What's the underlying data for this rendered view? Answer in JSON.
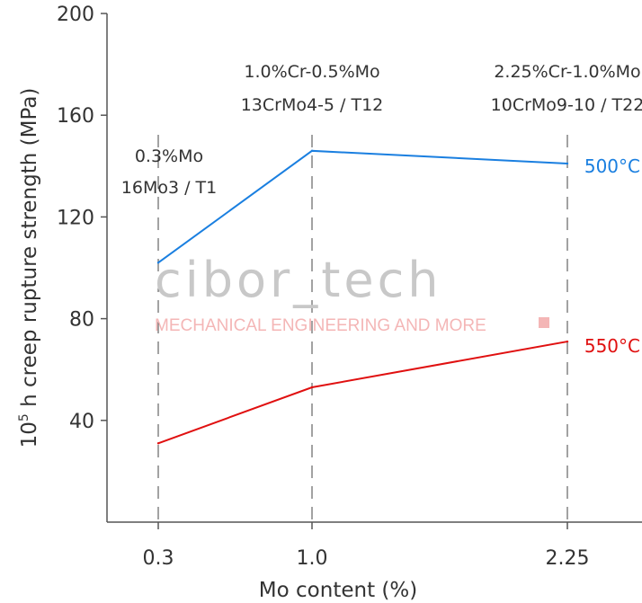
{
  "chart_data": {
    "type": "line",
    "xlabel": "Mo content (%)",
    "ylabel_main": "10",
    "ylabel_sup": "5",
    "ylabel_rest": " h creep rupture strength (MPa)",
    "categories": [
      "0.3",
      "1.0",
      "2.25"
    ],
    "y_ticks": [
      "40",
      "80",
      "120",
      "160",
      "200"
    ],
    "ylim": [
      0,
      200
    ],
    "grid": "dashed vertical lines at each category",
    "series": [
      {
        "name": "500°C",
        "color": "#1a7fe0",
        "values": [
          102,
          146,
          141
        ]
      },
      {
        "name": "550°C",
        "color": "#e01010",
        "values": [
          31,
          53,
          71
        ]
      }
    ],
    "annotations": [
      {
        "lines": [
          "0.3%Mo",
          "16Mo3 / T1"
        ]
      },
      {
        "lines": [
          "1.0%Cr-0.5%Mo",
          "13CrMo4-5 / T12"
        ]
      },
      {
        "lines": [
          "2.25%Cr-1.0%Mo",
          "10CrMo9-10 / T22"
        ]
      }
    ]
  },
  "watermark": {
    "logo": "cibor_tech",
    "subtitle": "MECHANICAL ENGINEERING AND MORE"
  }
}
